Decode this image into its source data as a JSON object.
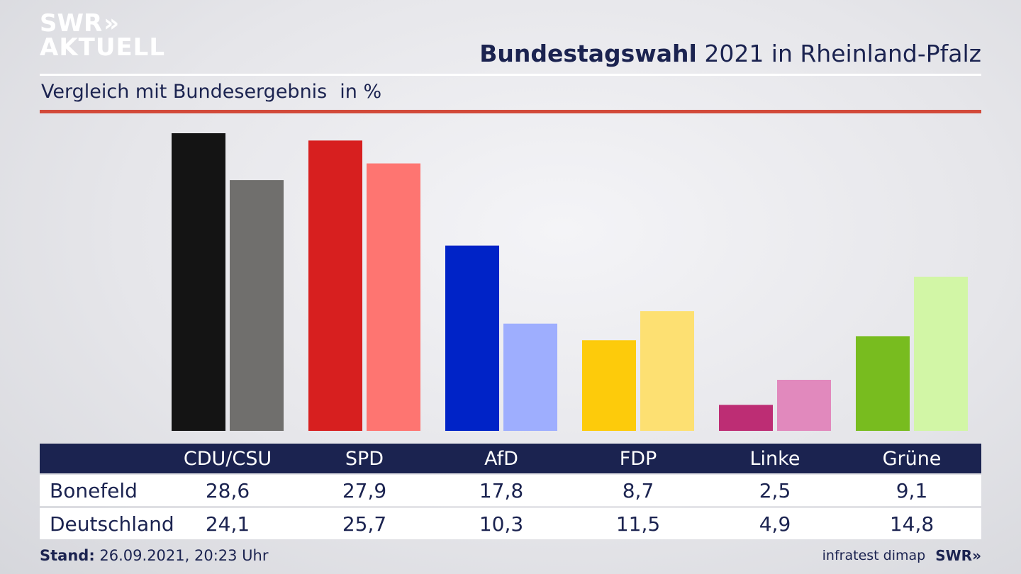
{
  "logo": {
    "line1": "SWR",
    "line2": "AKTUELL",
    "chevrons": "»"
  },
  "header": {
    "title_bold": "Bundestagswahl",
    "title_rest": " 2021 in Rheinland-Pfalz",
    "subtitle": "Vergleich mit Bundesergebnis",
    "unit": "in %"
  },
  "chart_data": {
    "type": "bar",
    "categories": [
      "CDU/CSU",
      "SPD",
      "AfD",
      "FDP",
      "Linke",
      "Grüne"
    ],
    "series": [
      {
        "name": "Bonefeld",
        "values": [
          28.6,
          27.9,
          17.8,
          8.7,
          2.5,
          9.1
        ],
        "colors": [
          "#141414",
          "#d71f1f",
          "#0023c7",
          "#fdcb0b",
          "#bd2d74",
          "#78bc1f"
        ]
      },
      {
        "name": "Deutschland",
        "values": [
          24.1,
          25.7,
          10.3,
          11.5,
          4.9,
          14.8
        ],
        "colors": [
          "#706f6d",
          "#fe7571",
          "#9eaefe",
          "#fde072",
          "#e189bd",
          "#d2f6a6"
        ]
      }
    ],
    "value_labels": {
      "Bonefeld": [
        "28,6",
        "27,9",
        "17,8",
        "8,7",
        "2,5",
        "9,1"
      ],
      "Deutschland": [
        "24,1",
        "25,7",
        "10,3",
        "11,5",
        "4,9",
        "14,8"
      ]
    },
    "ylim": [
      0,
      28.6
    ],
    "grid": false,
    "legend": "table-below"
  },
  "table": {
    "rows": [
      {
        "label": "Bonefeld"
      },
      {
        "label": "Deutschland"
      }
    ]
  },
  "footer": {
    "stand_label": "Stand:",
    "stand_value": " 26.09.2021, 20:23 Uhr",
    "source": "infratest dimap",
    "brand": "SWR",
    "brand_chevrons": "»"
  },
  "colors": {
    "navy": "#1b2350",
    "accent_red": "#d24a3a"
  }
}
